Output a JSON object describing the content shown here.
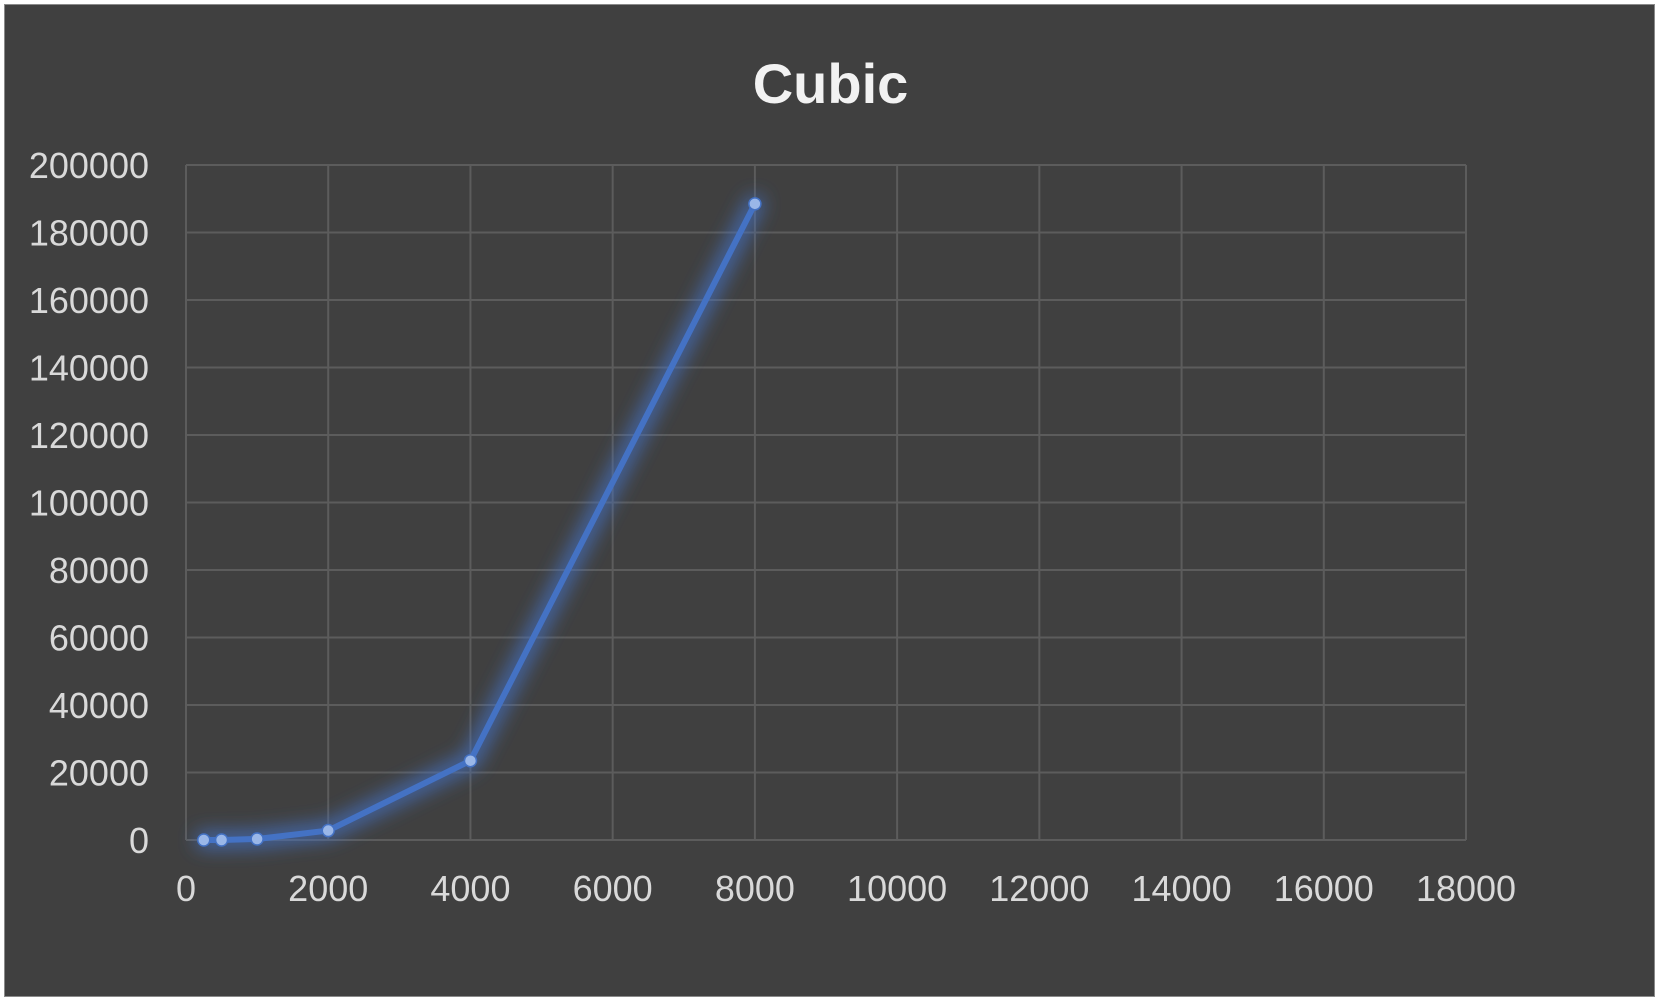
{
  "chart_data": {
    "type": "scatter",
    "title": "Cubic",
    "xlabel": "",
    "ylabel": "",
    "xlim": [
      0,
      18000
    ],
    "ylim": [
      0,
      200000
    ],
    "x_ticks": [
      0,
      2000,
      4000,
      6000,
      8000,
      10000,
      12000,
      14000,
      16000,
      18000
    ],
    "y_ticks": [
      0,
      20000,
      40000,
      60000,
      80000,
      100000,
      120000,
      140000,
      160000,
      180000,
      200000
    ],
    "grid": true,
    "legend": "none",
    "series": [
      {
        "color": "#4472c4",
        "line": "straight-with-markers",
        "points": [
          {
            "x": 250,
            "y": 0
          },
          {
            "x": 500,
            "y": 0
          },
          {
            "x": 1000,
            "y": 300
          },
          {
            "x": 2000,
            "y": 2800
          },
          {
            "x": 4000,
            "y": 23500
          },
          {
            "x": 8000,
            "y": 188500
          }
        ]
      }
    ]
  }
}
